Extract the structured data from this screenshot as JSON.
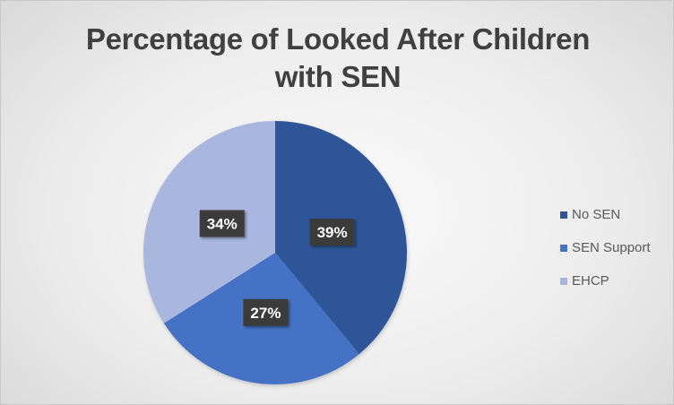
{
  "chart_data": {
    "type": "pie",
    "title": "Percentage of Looked After Children with SEN",
    "title_lines": [
      "Percentage of Looked After Children",
      "with SEN"
    ],
    "categories": [
      "No SEN",
      "SEN Support",
      "EHCP"
    ],
    "values": [
      39,
      27,
      34
    ],
    "data_labels": [
      "39%",
      "27%",
      "34%"
    ],
    "colors": [
      "#2f5597",
      "#4472c4",
      "#a9b7df"
    ],
    "legend_position": "right",
    "start_angle_deg": 0,
    "direction": "clockwise"
  }
}
